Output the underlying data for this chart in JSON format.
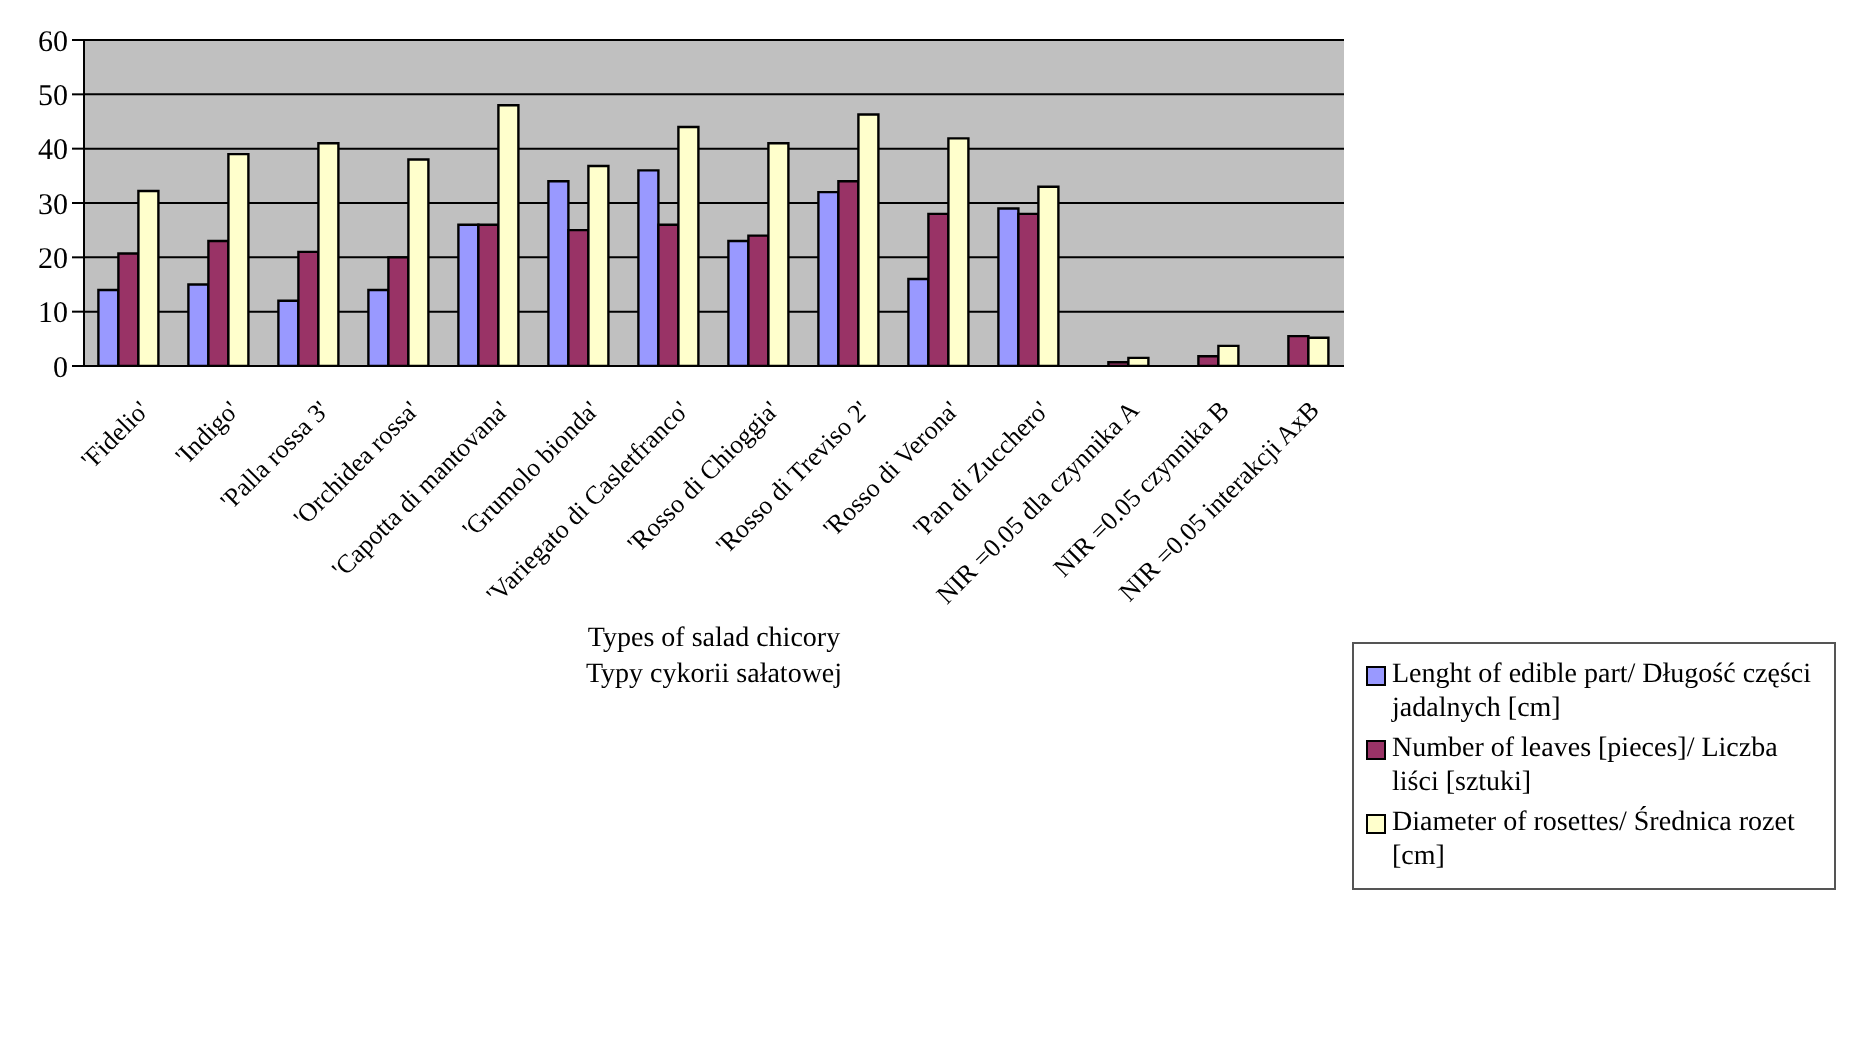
{
  "chart_data": {
    "type": "bar",
    "xlabel": "Types of salad chicory\nTypy cykorii sałatowej",
    "categories": [
      "'Fidelio'",
      "'Indigo'",
      "'Palla rossa 3'",
      "'Orchidea rossa'",
      "'Capotta di mantovana'",
      "'Grumolo bionda'",
      "'Variegato di Casletfranco'",
      "'Rosso di Chioggia'",
      "'Rosso di Treviso 2'",
      "'Rosso di Verona'",
      "'Pan di Zucchero'",
      "NIR =0.05 dla czynnika A",
      "NIR =0.05 czynnika B",
      "NIR =0.05 interakcji AxB"
    ],
    "series": [
      {
        "name": "Lenght of edible part/ Długość części jadalnych [cm]",
        "color": "#9999ff",
        "values": [
          14,
          15,
          12,
          14,
          26,
          34,
          36,
          23,
          32,
          16,
          29,
          null,
          null,
          null
        ]
      },
      {
        "name": "Number of leaves [pieces]/ Liczba liści [sztuki]",
        "color": "#993366",
        "values": [
          20.7,
          23,
          21,
          20,
          26,
          25,
          26,
          24,
          34,
          28,
          28,
          0.7,
          1.8,
          5.5
        ]
      },
      {
        "name": "Diameter of rosettes/ Średnica rozet [cm]",
        "color": "#ffffcc",
        "values": [
          32.2,
          39,
          41,
          38,
          48,
          36.8,
          44,
          41,
          46.3,
          41.9,
          33,
          1.5,
          3.7,
          5.2
        ]
      }
    ],
    "ylim": [
      0,
      60
    ],
    "yticks": [
      0,
      10,
      20,
      30,
      40,
      50,
      60
    ],
    "grid": "y",
    "legend": "right"
  }
}
